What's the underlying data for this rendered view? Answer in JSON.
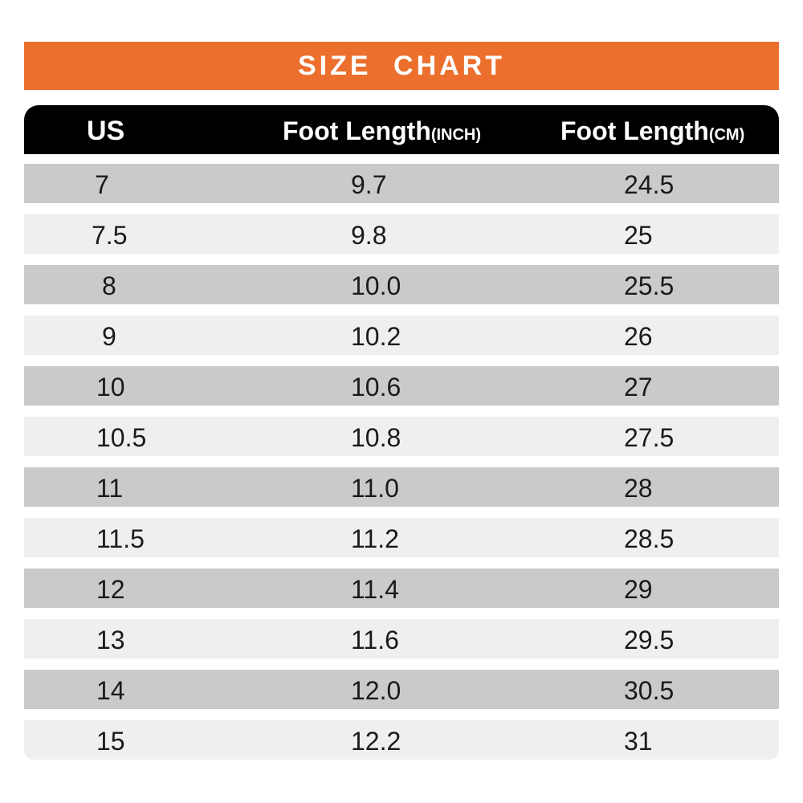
{
  "title": "SIZE  CHART",
  "header": {
    "us": "US",
    "inch_label": "Foot Length",
    "inch_unit": "(INCH)",
    "cm_label": "Foot Length",
    "cm_unit": "(CM)"
  },
  "colors": {
    "title_bar": "#ec6f2d",
    "header_bg": "#000000",
    "row_dark": "#cacaca",
    "row_light": "#efefef"
  },
  "rows": [
    {
      "us": "7",
      "inch": "9.7",
      "cm": "24.5"
    },
    {
      "us": "7.5",
      "inch": "9.8",
      "cm": "25"
    },
    {
      "us": "8",
      "inch": "10.0",
      "cm": "25.5"
    },
    {
      "us": "9",
      "inch": "10.2",
      "cm": "26"
    },
    {
      "us": "10",
      "inch": "10.6",
      "cm": "27"
    },
    {
      "us": "10.5",
      "inch": "10.8",
      "cm": "27.5"
    },
    {
      "us": "11",
      "inch": "11.0",
      "cm": "28"
    },
    {
      "us": "11.5",
      "inch": "11.2",
      "cm": "28.5"
    },
    {
      "us": "12",
      "inch": "11.4",
      "cm": "29"
    },
    {
      "us": "13",
      "inch": "11.6",
      "cm": "29.5"
    },
    {
      "us": "14",
      "inch": "12.0",
      "cm": "30.5"
    },
    {
      "us": "15",
      "inch": "12.2",
      "cm": "31"
    }
  ]
}
